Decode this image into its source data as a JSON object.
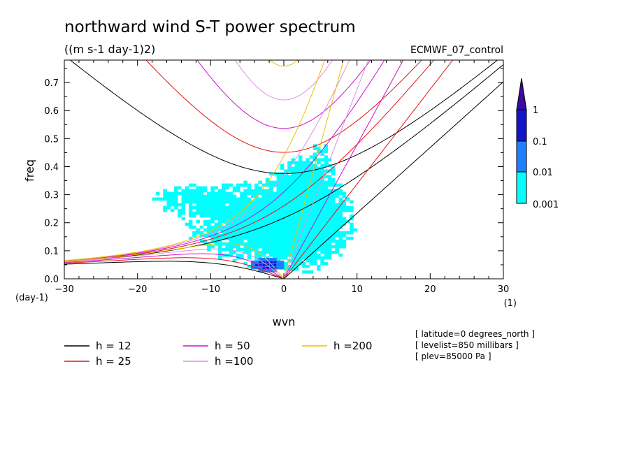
{
  "chart_data": {
    "type": "line",
    "title": "northward wind S-T power spectrum",
    "units": "((m s-1 day-1)2)",
    "dataset": "ECMWF_07_control",
    "xlabel": "wvn",
    "ylabel": "freq",
    "x_unit": "(1)",
    "y_unit": "(day-1)",
    "xlim": [
      -30,
      30
    ],
    "ylim": [
      0,
      0.78
    ],
    "xticks": [
      -30,
      -20,
      -10,
      0,
      10,
      20,
      30
    ],
    "yticks": [
      0,
      0.1,
      0.2,
      0.3,
      0.4,
      0.5,
      0.6,
      0.7
    ],
    "xtick_labels": [
      "−30",
      "−20",
      "−10",
      "0",
      "10",
      "20",
      "30"
    ],
    "ytick_labels": [
      "0.0",
      "0.1",
      "0.2",
      "0.3",
      "0.4",
      "0.5",
      "0.6",
      "0.7"
    ],
    "colorbar": {
      "levels": [
        "0.001",
        "0.01",
        "0.1",
        "1"
      ],
      "colors": [
        "#00ffff",
        "#1f7fff",
        "#1414c8",
        "#3c0a9e"
      ]
    },
    "series": [
      {
        "name": "h = 12",
        "equivalent_depth": 12,
        "color": "#000000"
      },
      {
        "name": "h = 25",
        "equivalent_depth": 25,
        "color": "#e81010"
      },
      {
        "name": "h = 50",
        "equivalent_depth": 50,
        "color": "#cc10cc"
      },
      {
        "name": "h =100",
        "equivalent_depth": 100,
        "color": "#e090e0"
      },
      {
        "name": "h =200",
        "equivalent_depth": 200,
        "color": "#f0c000"
      }
    ],
    "annotations": [
      "[ latitude=0 degrees_north ]",
      "[ levelist=850 millibars ]",
      "[ plev=85000 Pa ]"
    ]
  }
}
